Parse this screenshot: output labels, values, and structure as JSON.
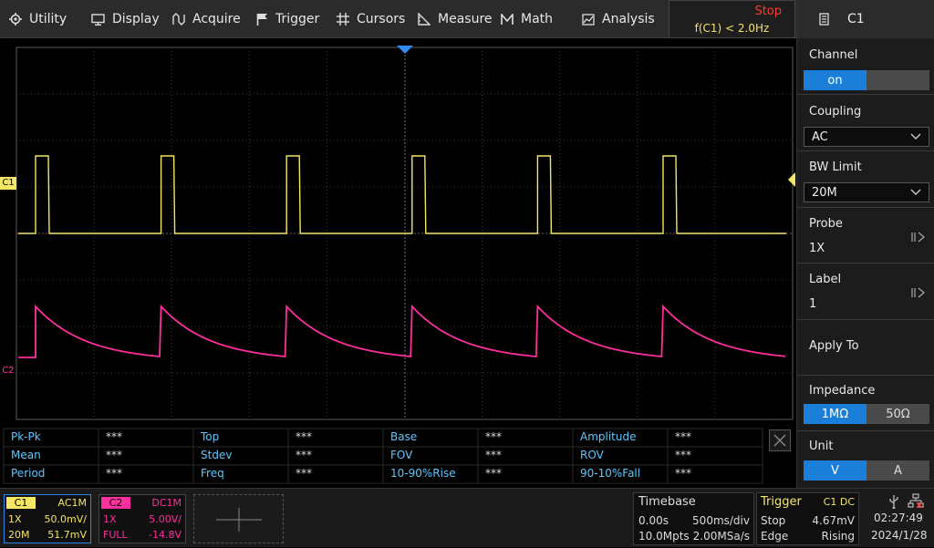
{
  "menu": {
    "utility": "Utility",
    "display": "Display",
    "acquire": "Acquire",
    "trigger": "Trigger",
    "cursors": "Cursors",
    "measure": "Measure",
    "math": "Math",
    "analysis": "Analysis"
  },
  "status": {
    "run_state": "Stop",
    "frequency": "f(C1) < 2.0Hz"
  },
  "channel_markers": {
    "c1": "C1",
    "c2": "C2"
  },
  "panel": {
    "title": "C1",
    "channel": {
      "label": "Channel",
      "on": "on",
      "off": ""
    },
    "coupling": {
      "label": "Coupling",
      "value": "AC"
    },
    "bw_limit": {
      "label": "BW Limit",
      "value": "20M"
    },
    "probe": {
      "label": "Probe",
      "value": "1X"
    },
    "label": {
      "label": "Label",
      "value": "1"
    },
    "apply_to": {
      "label": "Apply To"
    },
    "impedance": {
      "label": "Impedance",
      "opt1": "1MΩ",
      "opt2": "50Ω"
    },
    "unit": {
      "label": "Unit",
      "opt1": "V",
      "opt2": "A"
    }
  },
  "measurements": [
    {
      "name": "Pk-Pk",
      "value": "***"
    },
    {
      "name": "Top",
      "value": "***"
    },
    {
      "name": "Base",
      "value": "***"
    },
    {
      "name": "Amplitude",
      "value": "***"
    },
    {
      "name": "Mean",
      "value": "***"
    },
    {
      "name": "Stdev",
      "value": "***"
    },
    {
      "name": "FOV",
      "value": "***"
    },
    {
      "name": "ROV",
      "value": "***"
    },
    {
      "name": "Period",
      "value": "***"
    },
    {
      "name": "Freq",
      "value": "***"
    },
    {
      "name": "10-90%Rise",
      "value": "***"
    },
    {
      "name": "90-10%Fall",
      "value": "***"
    }
  ],
  "ch1": {
    "tag": "C1",
    "coupling": "AC1M",
    "probe": "1X",
    "scale": "50.0mV/",
    "bw": "20M",
    "offset": "51.7mV",
    "color": "#f5e663"
  },
  "ch2": {
    "tag": "C2",
    "coupling": "DC1M",
    "probe": "1X",
    "scale": "5.00V/",
    "bw": "FULL",
    "offset": "-14.8V",
    "color": "#ff2fa0"
  },
  "timebase": {
    "title": "Timebase",
    "delay": "0.00s",
    "scale": "500ms/div",
    "points": "10.0Mpts",
    "rate": "2.00MSa/s"
  },
  "trigger": {
    "title": "Trigger",
    "source": "C1 DC",
    "mode": "Stop",
    "level": "4.67mV",
    "type": "Edge",
    "slope": "Rising"
  },
  "clock": {
    "time": "02:27:49",
    "date": "2024/1/28"
  }
}
